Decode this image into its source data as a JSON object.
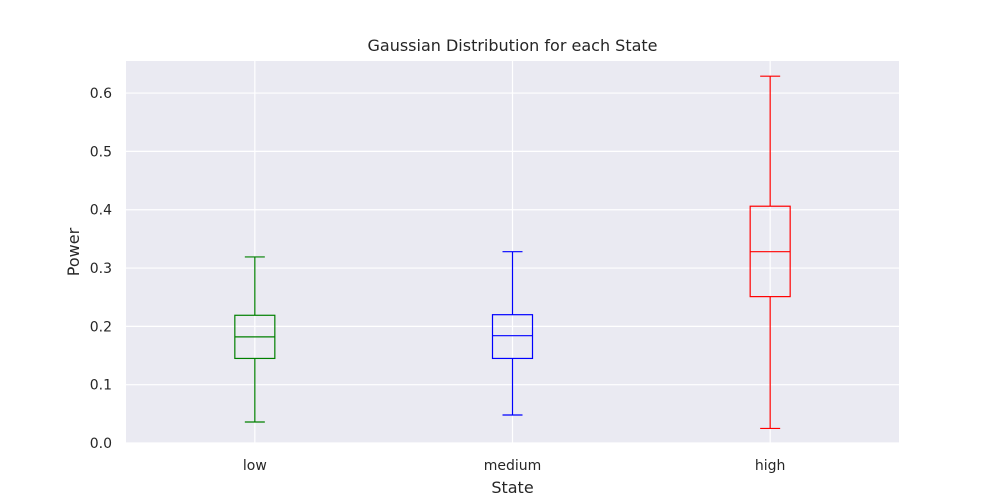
{
  "chart_data": {
    "type": "box",
    "title": "Gaussian Distribution for each State",
    "xlabel": "State",
    "ylabel": "Power",
    "categories": [
      "low",
      "medium",
      "high"
    ],
    "ylim": [
      0.0,
      0.655
    ],
    "yticks": [
      0.0,
      0.1,
      0.2,
      0.3,
      0.4,
      0.5,
      0.6
    ],
    "ytick_labels": [
      "0.0",
      "0.1",
      "0.2",
      "0.3",
      "0.4",
      "0.5",
      "0.6"
    ],
    "grid": true,
    "series": [
      {
        "category": "low",
        "whisker_low": 0.036,
        "q1": 0.145,
        "median": 0.182,
        "q3": 0.219,
        "whisker_high": 0.319,
        "color": "#008000"
      },
      {
        "category": "medium",
        "whisker_low": 0.048,
        "q1": 0.145,
        "median": 0.184,
        "q3": 0.22,
        "whisker_high": 0.328,
        "color": "#0000ff"
      },
      {
        "category": "high",
        "whisker_low": 0.025,
        "q1": 0.251,
        "median": 0.328,
        "q3": 0.406,
        "whisker_high": 0.629,
        "color": "#ff0000"
      }
    ]
  }
}
